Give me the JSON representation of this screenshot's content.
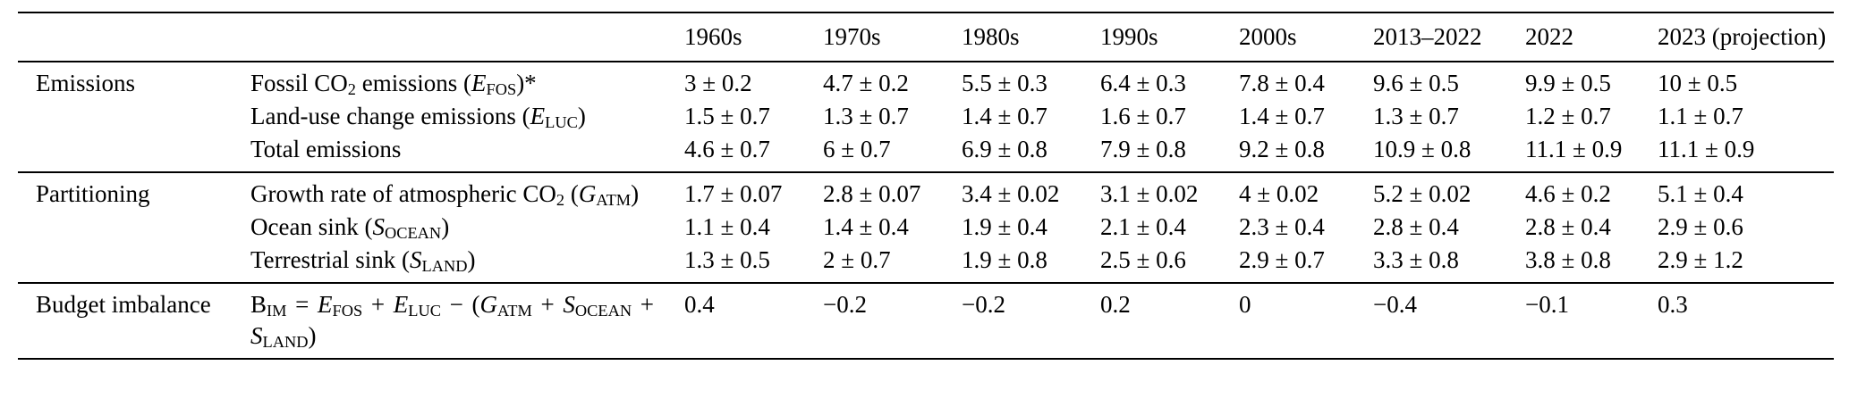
{
  "table": {
    "columns": [
      "",
      "",
      "1960s",
      "1970s",
      "1980s",
      "1990s",
      "2000s",
      "2013–2022",
      "2022",
      "2023 (projection)"
    ],
    "sections": [
      {
        "category": "Emissions",
        "rows": [
          {
            "label": "Fossil CO{s:2} emissions ({i:E}{s:FOS})*",
            "values": [
              "3 ± 0.2",
              "4.7 ± 0.2",
              "5.5 ± 0.3",
              "6.4 ± 0.3",
              "7.8 ± 0.4",
              "9.6 ± 0.5",
              "9.9 ± 0.5",
              "10 ± 0.5"
            ]
          },
          {
            "label": "Land-use change emissions ({i:E}{s:LUC})",
            "values": [
              "1.5 ± 0.7",
              "1.3 ± 0.7",
              "1.4 ± 0.7",
              "1.6 ± 0.7",
              "1.4 ± 0.7",
              "1.3 ± 0.7",
              "1.2 ± 0.7",
              "1.1 ± 0.7"
            ]
          },
          {
            "label": "Total emissions",
            "values": [
              "4.6 ± 0.7",
              "6 ± 0.7",
              "6.9 ± 0.8",
              "7.9 ± 0.8",
              "9.2 ± 0.8",
              "10.9 ± 0.8",
              "11.1 ± 0.9",
              "11.1 ± 0.9"
            ]
          }
        ]
      },
      {
        "category": "Partitioning",
        "rows": [
          {
            "label": "Growth rate of atmospheric CO{s:2} ({i:G}{s:ATM})",
            "values": [
              "1.7 ± 0.07",
              "2.8 ± 0.07",
              "3.4 ± 0.02",
              "3.1 ± 0.02",
              "4 ± 0.02",
              "5.2 ± 0.02",
              "4.6 ± 0.2",
              "5.1 ± 0.4"
            ]
          },
          {
            "label": "Ocean sink ({i:S}{s:OCEAN})",
            "values": [
              "1.1 ± 0.4",
              "1.4 ± 0.4",
              "1.9 ± 0.4",
              "2.1 ± 0.4",
              "2.3 ± 0.4",
              "2.8 ± 0.4",
              "2.8 ± 0.4",
              "2.9 ± 0.6"
            ]
          },
          {
            "label": "Terrestrial sink ({i:S}{s:LAND})",
            "values": [
              "1.3 ± 0.5",
              "2 ± 0.7",
              "1.9 ± 0.8",
              "2.5 ± 0.6",
              "2.9 ± 0.7",
              "3.3 ± 0.8",
              "3.8 ± 0.8",
              "2.9 ± 1.2"
            ]
          }
        ]
      },
      {
        "category": "Budget imbalance",
        "rows": [
          {
            "label": "B{s:IM} = {i:E}{s:FOS} + {i:E}{s:LUC} − ({i:G}{s:ATM} + {i:S}{s:OCEAN} + {i:S}{s:LAND})",
            "values": [
              "0.4",
              "−0.2",
              "−0.2",
              "0.2",
              "0",
              "−0.4",
              "−0.1",
              "0.3"
            ]
          }
        ]
      }
    ]
  }
}
